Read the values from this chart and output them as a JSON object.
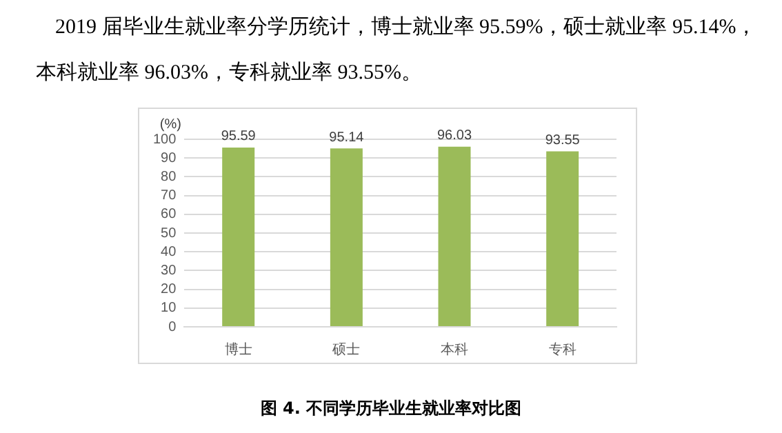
{
  "chart_data": {
    "type": "bar",
    "title": "图 4. 不同学历毕业生就业率对比图",
    "subtitle": "2019 届毕业生就业率分学历统计，博士就业率 95.59%，硕士就业率 95.14%，本科就业率 96.03%，专科就业率 93.55%。",
    "ylabel": "(%)",
    "categories": [
      "博士",
      "硕士",
      "本科",
      "专科"
    ],
    "values": [
      95.59,
      95.14,
      96.03,
      93.55
    ],
    "color": "#9bbb59",
    "ylim": [
      0,
      100
    ],
    "yticks": [
      0,
      10,
      20,
      30,
      40,
      50,
      60,
      70,
      80,
      90,
      100
    ],
    "grid": "y",
    "data_labels": true
  }
}
